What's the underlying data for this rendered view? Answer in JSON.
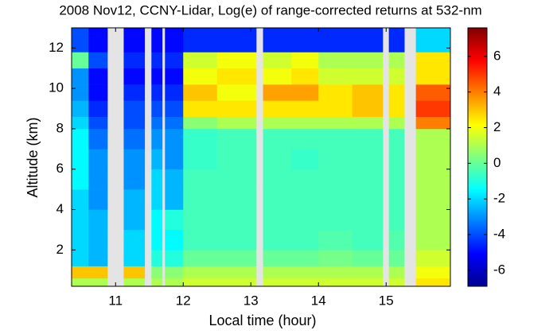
{
  "chart_data": {
    "type": "heatmap",
    "title": "2008 Nov12, CCNY-Lidar, Log(e) of range-corrected returns at 532-nm",
    "xlabel": "Local time (hour)",
    "ylabel": "Altitude (km)",
    "colormap": "jet",
    "xlim": [
      10.35,
      15.95
    ],
    "ylim": [
      0.2,
      13
    ],
    "xticks": [
      11,
      12,
      13,
      14,
      15
    ],
    "yticks": [
      2,
      4,
      6,
      8,
      10,
      12
    ],
    "clim": [
      -6.9,
      7.6
    ],
    "cticks": [
      -6,
      -4,
      -2,
      0,
      2,
      4,
      6
    ],
    "xbins": [
      10.35,
      10.6,
      10.88,
      11.12,
      11.43,
      11.53,
      11.69,
      11.73,
      12.0,
      12.5,
      13.08,
      13.18,
      13.6,
      14.0,
      14.5,
      14.95,
      15.04,
      15.27,
      15.44,
      15.95
    ],
    "ybins": [
      0.2,
      0.6,
      1.2,
      2,
      3,
      4,
      5,
      6,
      7,
      8,
      8.6,
      9.4,
      10.2,
      11,
      11.8,
      13
    ],
    "z": [
      [
        1,
        1,
        null,
        1,
        null,
        1,
        null,
        1,
        1.5,
        1.5,
        null,
        1.5,
        1.5,
        1.5,
        1.5,
        null,
        1.5,
        null,
        2.5
      ],
      [
        3,
        3,
        null,
        3,
        null,
        0.5,
        null,
        0.5,
        1,
        1,
        null,
        1,
        1,
        1,
        1,
        null,
        1,
        null,
        2
      ],
      [
        -2,
        -2.5,
        null,
        -2,
        null,
        -1,
        null,
        -1,
        0,
        0,
        null,
        0,
        0,
        0.2,
        0,
        null,
        0,
        null,
        1.5
      ],
      [
        -2,
        -2.5,
        null,
        -2,
        null,
        -1.5,
        null,
        -1.5,
        -0.5,
        -0.5,
        null,
        -0.5,
        -0.5,
        -0.3,
        -0.5,
        null,
        -0.3,
        null,
        1
      ],
      [
        -2,
        -2.5,
        null,
        -2.5,
        null,
        -1.5,
        null,
        -1,
        -0.5,
        -0.5,
        null,
        -0.5,
        -0.5,
        -0.5,
        -0.5,
        null,
        -0.5,
        null,
        1
      ],
      [
        -2,
        -3,
        null,
        -2.5,
        null,
        -2,
        null,
        -2.5,
        -0.5,
        -0.5,
        null,
        -0.5,
        -0.5,
        -0.5,
        -0.5,
        null,
        -0.5,
        null,
        1
      ],
      [
        -1.5,
        -3,
        null,
        -3,
        null,
        -2,
        null,
        -2.5,
        -0.5,
        -0.5,
        null,
        -0.5,
        -0.5,
        -0.5,
        -0.5,
        null,
        -0.5,
        null,
        1
      ],
      [
        -1.5,
        -3,
        null,
        -3,
        null,
        -2.5,
        null,
        -3,
        -0.7,
        -0.5,
        null,
        -0.5,
        -0.7,
        -0.5,
        -0.5,
        null,
        -0.5,
        null,
        1
      ],
      [
        -1.5,
        -3.5,
        null,
        -3.5,
        null,
        -3,
        null,
        -3,
        -0.7,
        -0.5,
        null,
        -0.5,
        -0.5,
        -0.5,
        -0.5,
        null,
        -0.5,
        null,
        1
      ],
      [
        -2,
        -4,
        null,
        -4,
        null,
        -3.5,
        null,
        -3.5,
        0.5,
        1,
        null,
        1,
        1,
        1,
        1,
        null,
        1,
        null,
        4
      ],
      [
        -2.5,
        -4.5,
        null,
        -4,
        null,
        -4,
        null,
        -4,
        2.5,
        2.5,
        null,
        2.5,
        2.5,
        2.5,
        3,
        null,
        2.5,
        null,
        5
      ],
      [
        -3,
        -5,
        null,
        -4.5,
        null,
        -4.5,
        null,
        -4.5,
        3,
        2,
        null,
        3.5,
        3.5,
        2.5,
        3,
        null,
        2.5,
        null,
        4.5
      ],
      [
        -3,
        -5,
        null,
        -5,
        null,
        -5,
        null,
        -5,
        2,
        2.5,
        null,
        2,
        2.5,
        1.5,
        1.5,
        null,
        1.5,
        null,
        2.5
      ],
      [
        0,
        -4,
        null,
        -4.5,
        null,
        -4.5,
        null,
        -4.5,
        1.5,
        2,
        null,
        1.5,
        2,
        1,
        1,
        null,
        1,
        null,
        2.5
      ],
      [
        -4,
        -5,
        null,
        -5,
        null,
        -5,
        null,
        -5,
        -4.5,
        -4.5,
        null,
        -4.5,
        -4.5,
        -4.5,
        -4.5,
        null,
        -4.5,
        null,
        -2
      ]
    ]
  }
}
